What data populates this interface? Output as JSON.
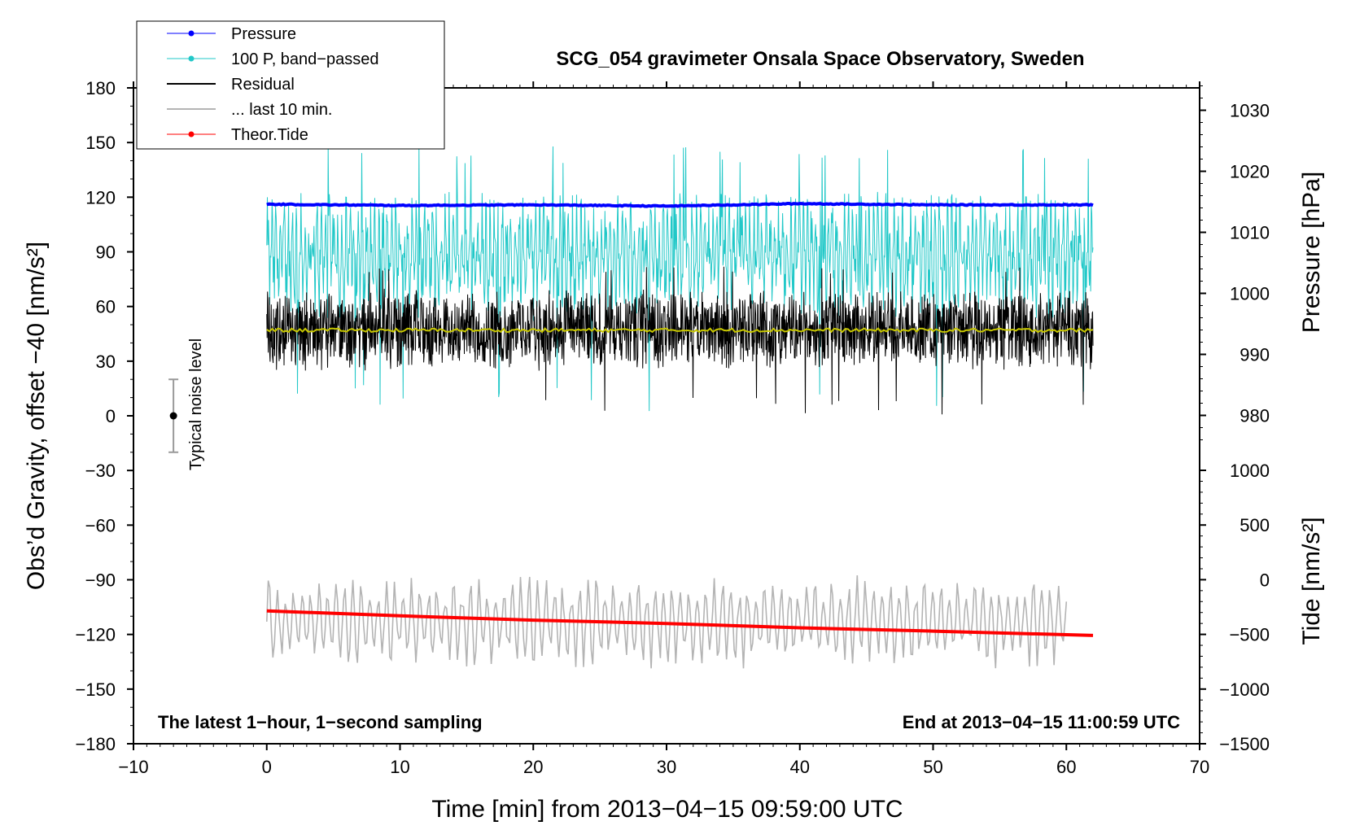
{
  "chart_data": {
    "type": "line",
    "title": "SCG_054 gravimeter Onsala Space Observatory, Sweden",
    "xlabel": "Time [min] from 2013−04−15 09:59:00 UTC",
    "ylabel": "Obs’d Gravity, offset −40 [nm/s²]",
    "ylabel_right_top": "Pressure [hPa]",
    "ylabel_right_bottom": "Tide [nm/s²]",
    "xlim": [
      -10,
      70
    ],
    "ylim": [
      -180,
      180
    ],
    "pressure_axis_range": [
      975,
      1035
    ],
    "tide_axis_range": [
      -1500,
      1000
    ],
    "x_ticks": [
      -10,
      0,
      10,
      20,
      30,
      40,
      50,
      60,
      70
    ],
    "x_tick_labels": [
      "−10",
      "0",
      "10",
      "20",
      "30",
      "40",
      "50",
      "60",
      "70"
    ],
    "y_ticks": [
      180,
      150,
      120,
      90,
      60,
      30,
      0,
      -30,
      -60,
      -90,
      -120,
      -150,
      -180
    ],
    "y_tick_labels": [
      "180",
      "150",
      "120",
      "90",
      "60",
      "30",
      "0",
      "−30",
      "−60",
      "−90",
      "−120",
      "−150",
      "−180"
    ],
    "pressure_ticks": [
      1030,
      1020,
      1010,
      1000,
      990,
      980
    ],
    "pressure_tick_labels": [
      "1030",
      "1020",
      "1010",
      "1000",
      "990",
      "980"
    ],
    "tide_ticks": [
      1000,
      500,
      0,
      -500,
      -1000,
      -1500
    ],
    "tide_tick_labels": [
      "1000",
      "500",
      "0",
      "−500",
      "−1000",
      "−1500"
    ],
    "legend": [
      {
        "label": "Pressure",
        "color": "#0000ff",
        "marker": true
      },
      {
        "label": "100 P, band−passed",
        "color": "#22c8c8",
        "marker": true
      },
      {
        "label": "Residual",
        "color": "#000000",
        "marker": false
      },
      {
        "label": "... last 10 min.",
        "color": "#b4b4b4",
        "marker": false
      },
      {
        "label": "Theor.Tide",
        "color": "#ff0000",
        "marker": true
      }
    ],
    "series": [
      {
        "name": "Pressure",
        "axis": "pressure",
        "color": "#0000ff",
        "x_range": [
          0,
          62
        ],
        "level_hPa": 1014.5,
        "points": [
          [
            0,
            1014.6
          ],
          [
            10,
            1014.4
          ],
          [
            20,
            1014.5
          ],
          [
            30,
            1014.3
          ],
          [
            40,
            1014.7
          ],
          [
            50,
            1014.5
          ],
          [
            62,
            1014.5
          ]
        ]
      },
      {
        "name": "100 P, band−passed",
        "axis": "gravity",
        "color": "#22c8c8",
        "x_range": [
          0,
          62
        ],
        "center": 88,
        "min": 0,
        "max": 148
      },
      {
        "name": "Residual",
        "axis": "gravity",
        "color": "#000000",
        "x_range": [
          0,
          62
        ],
        "center": 47,
        "min": 0,
        "max": 82
      },
      {
        "name": "Residual mean",
        "axis": "gravity",
        "color": "#c8c800",
        "x_range": [
          0,
          62
        ],
        "level": 47
      },
      {
        "name": "... last 10 min.",
        "axis": "gravity",
        "color": "#b4b4b4",
        "x_range": [
          0,
          60
        ],
        "center": -113,
        "min": -143,
        "max": -83
      },
      {
        "name": "Theor.Tide",
        "axis": "tide",
        "color": "#ff0000",
        "points": [
          [
            0,
            -285
          ],
          [
            10,
            -330
          ],
          [
            20,
            -370
          ],
          [
            30,
            -400
          ],
          [
            40,
            -440
          ],
          [
            50,
            -470
          ],
          [
            62,
            -510
          ]
        ]
      }
    ],
    "noise_bar": {
      "label": "Typical noise level",
      "x": -7,
      "center": 0,
      "low": -20,
      "high": 20
    },
    "annotations": {
      "left": "The latest 1−hour, 1−second sampling",
      "right": "End at 2013−04−15 11:00:59 UTC"
    }
  }
}
